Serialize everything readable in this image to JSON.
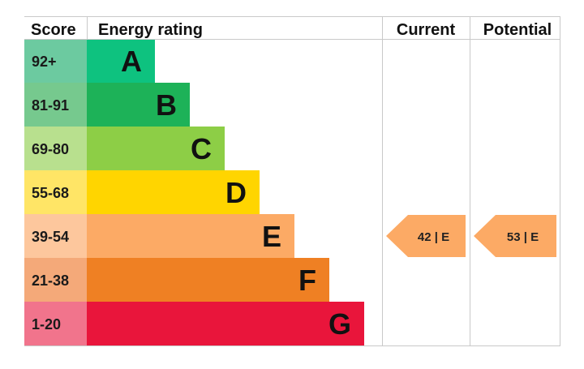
{
  "headers": {
    "score": "Score",
    "energy_rating": "Energy rating",
    "current": "Current",
    "potential": "Potential"
  },
  "chart_data": {
    "type": "bar",
    "title": "",
    "bands": [
      {
        "letter": "A",
        "range": "92+",
        "bar_color": "#0ec27f",
        "score_bg": "#6ccaa0"
      },
      {
        "letter": "B",
        "range": "81-91",
        "bar_color": "#1db258",
        "score_bg": "#76c98e"
      },
      {
        "letter": "C",
        "range": "69-80",
        "bar_color": "#8dce46",
        "score_bg": "#b8e08e"
      },
      {
        "letter": "D",
        "range": "55-68",
        "bar_color": "#ffd500",
        "score_bg": "#ffe566"
      },
      {
        "letter": "E",
        "range": "39-54",
        "bar_color": "#fcaa65",
        "score_bg": "#fdc79d"
      },
      {
        "letter": "F",
        "range": "21-38",
        "bar_color": "#ef8023",
        "score_bg": "#f4a979"
      },
      {
        "letter": "G",
        "range": "1-20",
        "bar_color": "#e9153b",
        "score_bg": "#f1748c"
      }
    ],
    "current": {
      "value": 42,
      "band": "E",
      "label": "42 | E"
    },
    "potential": {
      "value": 53,
      "band": "E",
      "label": "53 | E"
    },
    "arrow_color": "#fcaa65"
  }
}
